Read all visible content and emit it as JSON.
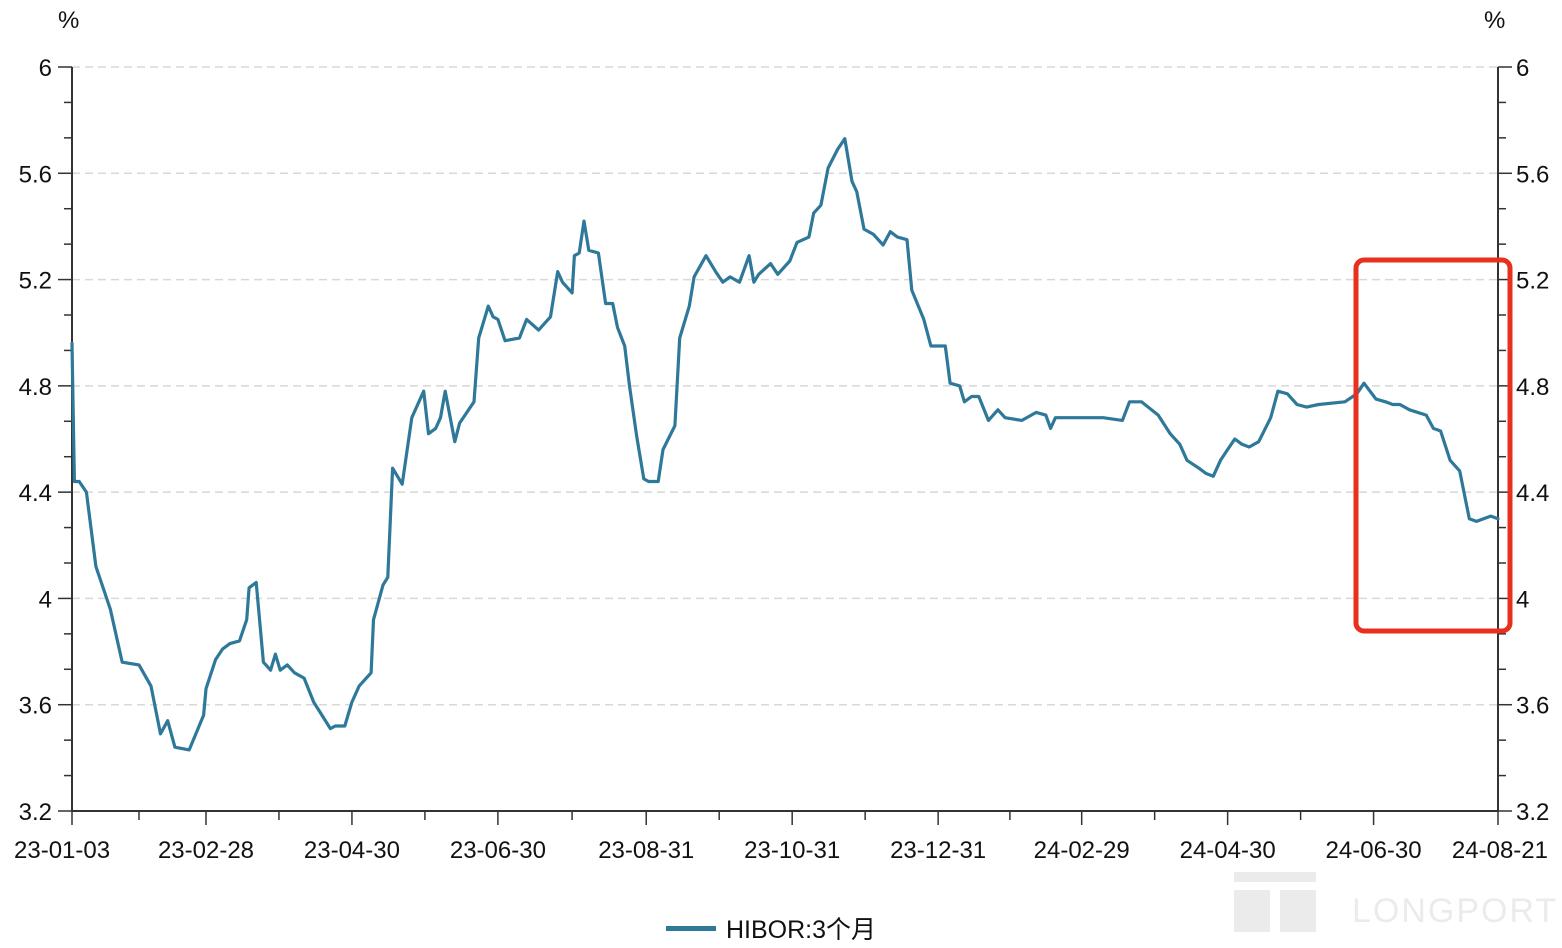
{
  "chart_data": {
    "type": "line",
    "title": "",
    "y_unit_left": "%",
    "y_unit_right": "%",
    "ylim": [
      3.2,
      6.0
    ],
    "y_ticks": [
      "3.2",
      "3.6",
      "4",
      "4.4",
      "4.8",
      "5.2",
      "5.6",
      "6"
    ],
    "x_ticks": [
      "23-01-03",
      "23-02-28",
      "23-04-30",
      "23-06-30",
      "23-08-31",
      "23-10-31",
      "23-12-31",
      "24-02-29",
      "24-04-30",
      "24-06-30",
      "24-08-21"
    ],
    "grid": "horizontal dashed",
    "legend_position": "bottom-center",
    "highlight": "red rounded box around 24-06-30 to 24-08-21",
    "colors": {
      "series": "#2e7899",
      "highlight": "#e8301f",
      "grid": "#d8d8d8"
    },
    "series": [
      {
        "name": "HIBOR:3个月",
        "points": [
          [
            "23-01-03",
            4.96
          ],
          [
            "23-01-04",
            4.44
          ],
          [
            "23-01-06",
            4.44
          ],
          [
            "23-01-09",
            4.4
          ],
          [
            "23-01-13",
            4.12
          ],
          [
            "23-01-19",
            3.96
          ],
          [
            "23-01-24",
            3.76
          ],
          [
            "23-01-31",
            3.75
          ],
          [
            "23-02-05",
            3.67
          ],
          [
            "23-02-09",
            3.49
          ],
          [
            "23-02-12",
            3.54
          ],
          [
            "23-02-15",
            3.44
          ],
          [
            "23-02-21",
            3.43
          ],
          [
            "23-02-27",
            3.56
          ],
          [
            "23-02-28",
            3.66
          ],
          [
            "23-03-04",
            3.77
          ],
          [
            "23-03-07",
            3.81
          ],
          [
            "23-03-10",
            3.83
          ],
          [
            "23-03-14",
            3.84
          ],
          [
            "23-03-17",
            3.92
          ],
          [
            "23-03-18",
            4.04
          ],
          [
            "23-03-21",
            4.06
          ],
          [
            "23-03-24",
            3.76
          ],
          [
            "23-03-27",
            3.73
          ],
          [
            "23-03-29",
            3.79
          ],
          [
            "23-03-31",
            3.73
          ],
          [
            "23-04-03",
            3.75
          ],
          [
            "23-04-06",
            3.72
          ],
          [
            "23-04-10",
            3.7
          ],
          [
            "23-04-14",
            3.61
          ],
          [
            "23-04-21",
            3.51
          ],
          [
            "23-04-23",
            3.52
          ],
          [
            "23-04-27",
            3.52
          ],
          [
            "23-04-30",
            3.61
          ],
          [
            "23-05-03",
            3.67
          ],
          [
            "23-05-08",
            3.72
          ],
          [
            "23-05-09",
            3.92
          ],
          [
            "23-05-13",
            4.05
          ],
          [
            "23-05-15",
            4.08
          ],
          [
            "23-05-17",
            4.49
          ],
          [
            "23-05-21",
            4.43
          ],
          [
            "23-05-25",
            4.68
          ],
          [
            "23-05-30",
            4.78
          ],
          [
            "23-06-01",
            4.62
          ],
          [
            "23-06-04",
            4.64
          ],
          [
            "23-06-06",
            4.68
          ],
          [
            "23-06-08",
            4.78
          ],
          [
            "23-06-12",
            4.59
          ],
          [
            "23-06-14",
            4.66
          ],
          [
            "23-06-20",
            4.74
          ],
          [
            "23-06-22",
            4.98
          ],
          [
            "23-06-26",
            5.1
          ],
          [
            "23-06-28",
            5.06
          ],
          [
            "23-06-30",
            5.05
          ],
          [
            "23-07-03",
            4.97
          ],
          [
            "23-07-09",
            4.98
          ],
          [
            "23-07-12",
            5.05
          ],
          [
            "23-07-17",
            5.01
          ],
          [
            "23-07-22",
            5.06
          ],
          [
            "23-07-25",
            5.23
          ],
          [
            "23-07-27",
            5.19
          ],
          [
            "23-07-31",
            5.15
          ],
          [
            "23-08-01",
            5.29
          ],
          [
            "23-08-03",
            5.3
          ],
          [
            "23-08-05",
            5.42
          ],
          [
            "23-08-07",
            5.31
          ],
          [
            "23-08-11",
            5.3
          ],
          [
            "23-08-14",
            5.11
          ],
          [
            "23-08-17",
            5.11
          ],
          [
            "23-08-19",
            5.02
          ],
          [
            "23-08-22",
            4.95
          ],
          [
            "23-08-24",
            4.8
          ],
          [
            "23-08-27",
            4.61
          ],
          [
            "23-08-30",
            4.45
          ],
          [
            "23-09-01",
            4.44
          ],
          [
            "23-09-05",
            4.44
          ],
          [
            "23-09-07",
            4.56
          ],
          [
            "23-09-12",
            4.65
          ],
          [
            "23-09-14",
            4.98
          ],
          [
            "23-09-18",
            5.1
          ],
          [
            "23-09-20",
            5.21
          ],
          [
            "23-09-25",
            5.29
          ],
          [
            "23-09-29",
            5.23
          ],
          [
            "23-10-02",
            5.19
          ],
          [
            "23-10-05",
            5.21
          ],
          [
            "23-10-09",
            5.19
          ],
          [
            "23-10-13",
            5.29
          ],
          [
            "23-10-15",
            5.19
          ],
          [
            "23-10-17",
            5.22
          ],
          [
            "23-10-22",
            5.26
          ],
          [
            "23-10-25",
            5.22
          ],
          [
            "23-10-27",
            5.24
          ],
          [
            "23-10-30",
            5.27
          ],
          [
            "23-11-02",
            5.34
          ],
          [
            "23-11-07",
            5.36
          ],
          [
            "23-11-09",
            5.45
          ],
          [
            "23-11-12",
            5.48
          ],
          [
            "23-11-15",
            5.62
          ],
          [
            "23-11-19",
            5.69
          ],
          [
            "23-11-22",
            5.73
          ],
          [
            "23-11-25",
            5.57
          ],
          [
            "23-11-27",
            5.53
          ],
          [
            "23-11-30",
            5.39
          ],
          [
            "23-12-04",
            5.37
          ],
          [
            "23-12-08",
            5.33
          ],
          [
            "23-12-11",
            5.38
          ],
          [
            "23-12-14",
            5.36
          ],
          [
            "23-12-18",
            5.35
          ],
          [
            "23-12-20",
            5.16
          ],
          [
            "23-12-25",
            5.05
          ],
          [
            "23-12-28",
            4.95
          ],
          [
            "24-01-03",
            4.95
          ],
          [
            "24-01-05",
            4.81
          ],
          [
            "24-01-09",
            4.8
          ],
          [
            "24-01-11",
            4.74
          ],
          [
            "24-01-14",
            4.76
          ],
          [
            "24-01-17",
            4.76
          ],
          [
            "24-01-21",
            4.67
          ],
          [
            "24-01-25",
            4.71
          ],
          [
            "24-01-28",
            4.68
          ],
          [
            "24-02-04",
            4.67
          ],
          [
            "24-02-10",
            4.7
          ],
          [
            "24-02-14",
            4.69
          ],
          [
            "24-02-16",
            4.64
          ],
          [
            "24-02-18",
            4.68
          ],
          [
            "24-02-29",
            4.68
          ],
          [
            "24-03-09",
            4.68
          ],
          [
            "24-03-17",
            4.67
          ],
          [
            "24-03-20",
            4.74
          ],
          [
            "24-03-25",
            4.74
          ],
          [
            "24-04-01",
            4.69
          ],
          [
            "24-04-06",
            4.62
          ],
          [
            "24-04-10",
            4.58
          ],
          [
            "24-04-13",
            4.52
          ],
          [
            "24-04-18",
            4.49
          ],
          [
            "24-04-21",
            4.47
          ],
          [
            "24-04-24",
            4.46
          ],
          [
            "24-04-27",
            4.52
          ],
          [
            "24-04-30",
            4.56
          ],
          [
            "24-05-03",
            4.6
          ],
          [
            "24-05-06",
            4.58
          ],
          [
            "24-05-09",
            4.57
          ],
          [
            "24-05-13",
            4.59
          ],
          [
            "24-05-18",
            4.68
          ],
          [
            "24-05-21",
            4.78
          ],
          [
            "24-05-25",
            4.77
          ],
          [
            "24-05-29",
            4.73
          ],
          [
            "24-06-02",
            4.72
          ],
          [
            "24-06-07",
            4.73
          ],
          [
            "24-06-18",
            4.74
          ],
          [
            "24-06-23",
            4.77
          ],
          [
            "24-06-26",
            4.81
          ],
          [
            "24-07-01",
            4.75
          ],
          [
            "24-07-05",
            4.74
          ],
          [
            "24-07-08",
            4.73
          ],
          [
            "24-07-11",
            4.73
          ],
          [
            "24-07-15",
            4.71
          ],
          [
            "24-07-22",
            4.69
          ],
          [
            "24-07-25",
            4.64
          ],
          [
            "24-07-28",
            4.63
          ],
          [
            "24-08-01",
            4.52
          ],
          [
            "24-08-05",
            4.48
          ],
          [
            "24-08-09",
            4.3
          ],
          [
            "24-08-12",
            4.29
          ],
          [
            "24-08-15",
            4.3
          ],
          [
            "24-08-18",
            4.31
          ],
          [
            "24-08-21",
            4.3
          ]
        ]
      }
    ]
  },
  "watermark": {
    "text": "LONGPORT"
  }
}
